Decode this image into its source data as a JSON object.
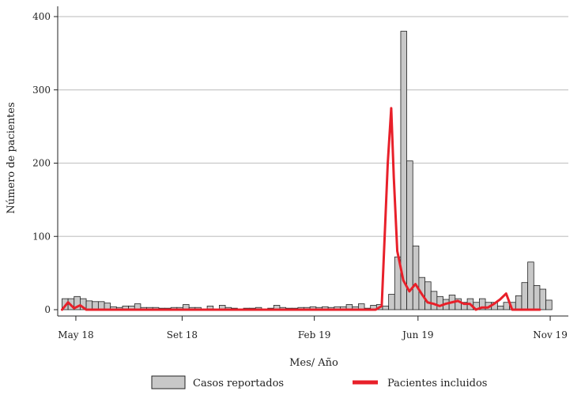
{
  "chart_data": {
    "type": "bar",
    "xlabel": "Mes/ Año",
    "ylabel": "Número de pacientes",
    "ylim": [
      0,
      400
    ],
    "yticks": [
      0,
      100,
      200,
      300,
      400
    ],
    "xlim": [
      "2018-04-10",
      "2019-11-22"
    ],
    "xticks": [
      {
        "date": "2018-05-01",
        "label": "May 18"
      },
      {
        "date": "2018-09-01",
        "label": "Set 18"
      },
      {
        "date": "2019-02-01",
        "label": "Feb 19"
      },
      {
        "date": "2019-06-01",
        "label": "Jun 19"
      },
      {
        "date": "2019-11-01",
        "label": "Nov 19"
      }
    ],
    "grid": {
      "horizontal": true,
      "vertical": false
    },
    "legend": {
      "position": "bottom"
    },
    "colors": {
      "bars_fill": "#c8c8c8",
      "bars_edge": "#222222",
      "line": "#e8202a",
      "grid": "#c8c8c8"
    },
    "series": [
      {
        "name": "Casos reportados",
        "type": "bar",
        "bin_days": 7,
        "start_date": "2018-04-15",
        "values": [
          15,
          15,
          18,
          15,
          12,
          11,
          11,
          9,
          4,
          3,
          5,
          5,
          8,
          3,
          3,
          3,
          2,
          2,
          3,
          3,
          7,
          3,
          3,
          1,
          5,
          1,
          6,
          3,
          2,
          1,
          2,
          2,
          3,
          1,
          2,
          6,
          3,
          2,
          2,
          3,
          3,
          4,
          3,
          4,
          3,
          4,
          4,
          7,
          4,
          8,
          2,
          6,
          7,
          5,
          21,
          72,
          380,
          203,
          87,
          44,
          38,
          25,
          18,
          14,
          20,
          15,
          10,
          15,
          10,
          15,
          10,
          10,
          5,
          10,
          10,
          19,
          37,
          65,
          33,
          28,
          13
        ]
      },
      {
        "name": "Pacientes incluidos",
        "type": "line",
        "points": [
          [
            "2018-04-15",
            0
          ],
          [
            "2018-04-22",
            10
          ],
          [
            "2018-04-29",
            2
          ],
          [
            "2018-05-06",
            6
          ],
          [
            "2018-05-13",
            0
          ],
          [
            "2019-04-13",
            0
          ],
          [
            "2019-04-20",
            5
          ],
          [
            "2019-04-27",
            200
          ],
          [
            "2019-05-01",
            275
          ],
          [
            "2019-05-04",
            180
          ],
          [
            "2019-05-08",
            80
          ],
          [
            "2019-05-15",
            40
          ],
          [
            "2019-05-22",
            25
          ],
          [
            "2019-05-29",
            35
          ],
          [
            "2019-06-05",
            22
          ],
          [
            "2019-06-12",
            10
          ],
          [
            "2019-06-19",
            8
          ],
          [
            "2019-06-26",
            5
          ],
          [
            "2019-07-03",
            8
          ],
          [
            "2019-07-10",
            10
          ],
          [
            "2019-07-17",
            12
          ],
          [
            "2019-07-24",
            8
          ],
          [
            "2019-07-31",
            8
          ],
          [
            "2019-08-07",
            0
          ],
          [
            "2019-08-14",
            3
          ],
          [
            "2019-08-21",
            3
          ],
          [
            "2019-08-28",
            8
          ],
          [
            "2019-09-04",
            14
          ],
          [
            "2019-09-11",
            22
          ],
          [
            "2019-09-18",
            0
          ],
          [
            "2019-10-20",
            0
          ]
        ]
      }
    ]
  }
}
